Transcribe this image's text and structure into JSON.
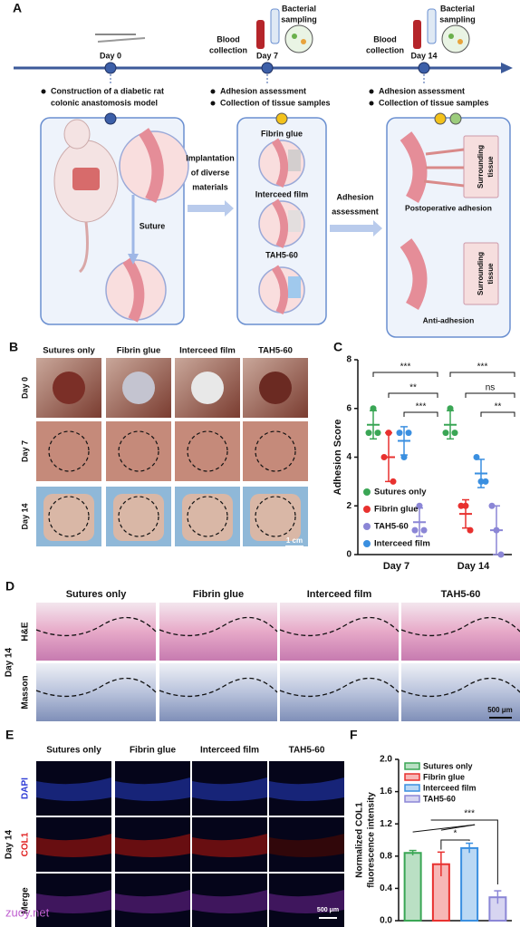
{
  "panel_a": {
    "label": "A",
    "days": [
      "Day 0",
      "Day 7",
      "Day 14"
    ],
    "blood_collection": [
      "Blood",
      "collection"
    ],
    "bacterial_sampling": [
      "Bacterial",
      "sampling"
    ],
    "bullets_day0": [
      "Construction of a diabetic rat",
      "colonic anastomosis model"
    ],
    "bullets_assessment": [
      "Adhesion assessment",
      "Collection of tissue samples"
    ],
    "suture": "Suture",
    "materials": [
      "Fibrin glue",
      "Interceed film",
      "TAH5-60"
    ],
    "implantation": [
      "Implantation",
      "of diverse",
      "materials"
    ],
    "adhesion_assessment": [
      "Adhesion",
      "assessment"
    ],
    "surrounding_tissue": [
      "Surrounding",
      "tissue"
    ],
    "postoperative_adhesion": "Postoperative adhesion",
    "anti_adhesion": "Anti-adhesion"
  },
  "panel_b": {
    "label": "B",
    "columns": [
      "Sutures only",
      "Fibrin glue",
      "Interceed film",
      "TAH5-60"
    ],
    "rows": [
      "Day 0",
      "Day 7",
      "Day 14"
    ],
    "scale_bar": "1 cm"
  },
  "panel_d": {
    "label": "D",
    "columns": [
      "Sutures only",
      "Fibrin glue",
      "Interceed film",
      "TAH5-60"
    ],
    "rows": [
      "H&E",
      "Masson"
    ],
    "group": "Day 14",
    "scale_bar": "500 μm"
  },
  "panel_e": {
    "label": "E",
    "columns": [
      "Sutures only",
      "Fibrin glue",
      "Interceed film",
      "TAH5-60"
    ],
    "rows": [
      "DAPI",
      "COL1",
      "Merge"
    ],
    "group": "Day 14",
    "scale_bar": "500 μm"
  },
  "watermark": "zuoy.net",
  "chart_data": [
    {
      "type": "dot",
      "label": "C",
      "ylabel": "Adhesion Score",
      "categories": [
        "Day 7",
        "Day 14"
      ],
      "ylim": [
        0,
        8
      ],
      "yticks": [
        0,
        2,
        4,
        6,
        8
      ],
      "series": [
        {
          "name": "Sutures only",
          "color": "#3aa655",
          "values": [
            [
              5,
              6,
              5
            ],
            [
              5,
              6,
              5
            ]
          ],
          "mean": [
            5.33,
            5.33
          ],
          "sd": [
            0.58,
            0.58
          ]
        },
        {
          "name": "Fibrin glue",
          "color": "#e8312f",
          "values": [
            [
              4,
              5,
              3
            ],
            [
              2,
              2,
              1
            ]
          ],
          "mean": [
            4,
            1.67
          ],
          "sd": [
            1,
            0.58
          ]
        },
        {
          "name": "TAH5-60",
          "color": "#8b86d6",
          "values": [
            [
              1,
              2,
              1
            ],
            [
              2,
              1,
              0
            ]
          ],
          "mean": [
            1.33,
            1
          ],
          "sd": [
            0.58,
            1
          ]
        },
        {
          "name": "Interceed film",
          "color": "#3a8fe0",
          "values": [
            [
              5,
              4,
              5
            ],
            [
              4,
              3,
              3
            ]
          ],
          "mean": [
            4.67,
            3.33
          ],
          "sd": [
            0.58,
            0.58
          ]
        }
      ],
      "significance": [
        "***",
        "**",
        "***",
        "***",
        "ns",
        "**"
      ]
    },
    {
      "type": "bar",
      "label": "F",
      "ylabel": [
        "Normalized COL1",
        "fluorescence intensity"
      ],
      "categories": [
        "Sutures only",
        "Fibrin glue",
        "Interceed film",
        "TAH5-60"
      ],
      "values": [
        0.84,
        0.7,
        0.9,
        0.29
      ],
      "errors": [
        0.03,
        0.15,
        0.06,
        0.08
      ],
      "colors": [
        "#3aa655",
        "#e8312f",
        "#3a8fe0",
        "#8b86d6"
      ],
      "ylim": [
        0,
        2
      ],
      "yticks": [
        {
          "value": 0,
          "label": "0.0"
        },
        0.4,
        0.8,
        1.2,
        1.6,
        {
          "value": 2,
          "label": "2.0"
        }
      ],
      "significance": [
        "***",
        "*"
      ]
    }
  ]
}
